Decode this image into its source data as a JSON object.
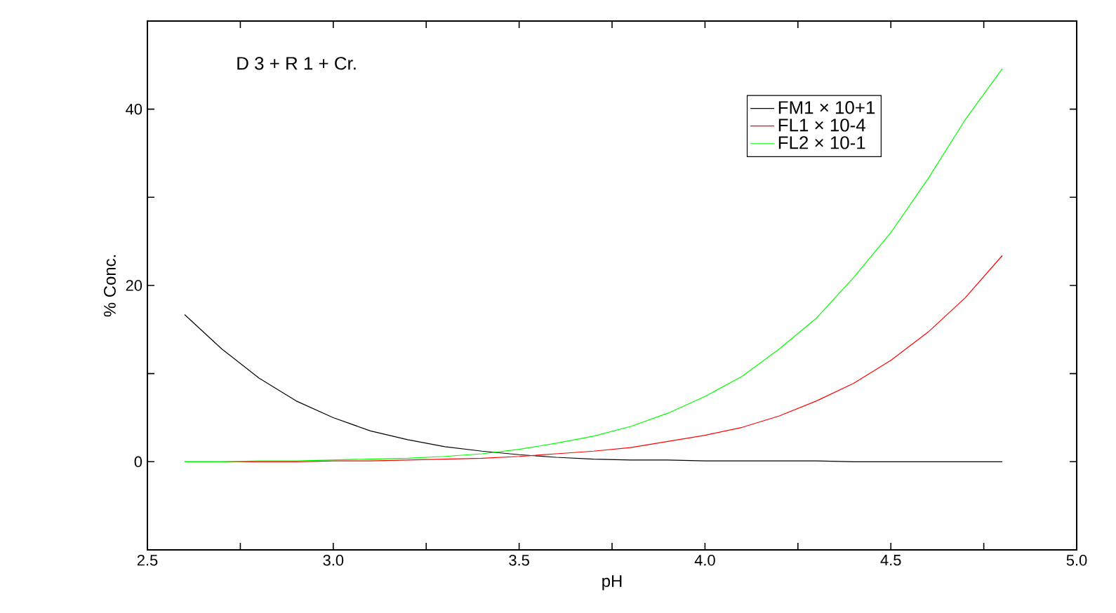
{
  "chart_data": {
    "type": "line",
    "xlabel": "pH",
    "ylabel": "% Conc.",
    "annotations": [
      "D 3 + R 1 + Cr."
    ],
    "x": [
      2.6,
      2.7,
      2.8,
      2.9,
      3.0,
      3.1,
      3.2,
      3.3,
      3.4,
      3.5,
      3.6,
      3.7,
      3.8,
      3.9,
      4.0,
      4.1,
      4.2,
      4.3,
      4.4,
      4.5,
      4.6,
      4.7,
      4.8
    ],
    "series": [
      {
        "name": "FM1 × 10+1",
        "color": "#000000",
        "values": [
          16.7,
          12.8,
          9.5,
          6.9,
          5.0,
          3.5,
          2.5,
          1.7,
          1.2,
          0.8,
          0.5,
          0.3,
          0.2,
          0.2,
          0.1,
          0.1,
          0.1,
          0.1,
          0.0,
          0.0,
          0.0,
          0.0,
          0.0
        ]
      },
      {
        "name": "FL1 × 10-4",
        "color": "#ff0000",
        "values": [
          0.0,
          0.0,
          0.0,
          0.0,
          0.1,
          0.1,
          0.2,
          0.3,
          0.4,
          0.6,
          0.9,
          1.2,
          1.6,
          2.3,
          3.0,
          3.9,
          5.2,
          6.9,
          8.9,
          11.5,
          14.7,
          18.6,
          23.4
        ]
      },
      {
        "name": "FL2 × 10-1",
        "color": "#00ff00",
        "values": [
          0.0,
          0.0,
          0.1,
          0.1,
          0.2,
          0.3,
          0.4,
          0.6,
          0.9,
          1.4,
          2.1,
          2.9,
          4.0,
          5.5,
          7.4,
          9.7,
          12.8,
          16.3,
          20.9,
          26.0,
          32.1,
          38.8,
          44.6
        ]
      }
    ],
    "xlim": [
      2.5,
      5.0
    ],
    "xticks": [
      2.5,
      {
        "value": 2.75,
        "label": null
      },
      {
        "value": 3,
        "label": "3.0"
      },
      {
        "value": 3.25,
        "label": null
      },
      3.5,
      {
        "value": 3.75,
        "label": null
      },
      {
        "value": 4,
        "label": "4.0"
      },
      {
        "value": 4.25,
        "label": null
      },
      4.5,
      {
        "value": 4.75,
        "label": null
      },
      {
        "value": 5,
        "label": "5.0"
      }
    ],
    "ylim": [
      -10,
      50
    ],
    "yticks": [
      {
        "value": -10,
        "label": null
      },
      0,
      {
        "value": 10,
        "label": null
      },
      20,
      {
        "value": 30,
        "label": null
      },
      40
    ],
    "legend": "top right",
    "grid": false,
    "marker": "none",
    "line_style": "solid"
  }
}
